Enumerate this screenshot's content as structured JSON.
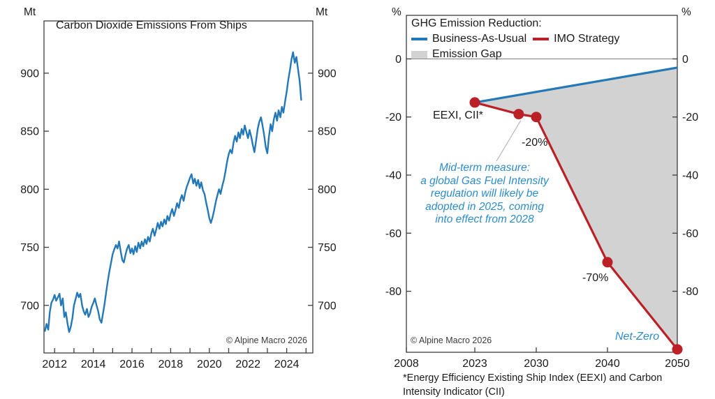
{
  "colors": {
    "line_blue": "#2379b7",
    "line_red": "#bb2027",
    "gap_gray": "#d2d2d2",
    "annotation_blue": "#2e8bc9",
    "axis_line": "#3d3d3d",
    "zero_line": "#8a8a8a",
    "callout": "#b5b5b5",
    "text": "#1a1a1a",
    "source_text": "#3a3a3a"
  },
  "chart_data": [
    {
      "type": "line",
      "title": "Carbon Dioxide Emissions From Ships",
      "unit_left": "Mt",
      "unit_right": "Mt",
      "source": "© Alpine Macro 2026",
      "xlim": [
        2011.45,
        2025.35
      ],
      "ylim": [
        659,
        945
      ],
      "y_ticks": [
        700,
        750,
        800,
        850,
        900
      ],
      "x_tick_years": [
        2012,
        2013,
        2014,
        2015,
        2016,
        2017,
        2018,
        2019,
        2020,
        2021,
        2022,
        2023,
        2024,
        2025
      ],
      "x_tick_labels": [
        2012,
        2014,
        2016,
        2018,
        2020,
        2022,
        2024
      ],
      "grid": false,
      "series": [
        {
          "name": "CO2 emissions from ships (Mt)",
          "color_key": "line_blue",
          "points": [
            [
              2011.5,
              678
            ],
            [
              2011.58,
              684
            ],
            [
              2011.67,
              679
            ],
            [
              2011.75,
              694
            ],
            [
              2011.83,
              702
            ],
            [
              2011.92,
              705
            ],
            [
              2012,
              709
            ],
            [
              2012.08,
              704
            ],
            [
              2012.17,
              707
            ],
            [
              2012.25,
              710
            ],
            [
              2012.33,
              700
            ],
            [
              2012.42,
              706
            ],
            [
              2012.5,
              690
            ],
            [
              2012.58,
              694
            ],
            [
              2012.67,
              684
            ],
            [
              2012.75,
              677
            ],
            [
              2012.83,
              681
            ],
            [
              2012.92,
              689
            ],
            [
              2013,
              700
            ],
            [
              2013.08,
              705
            ],
            [
              2013.17,
              711
            ],
            [
              2013.25,
              707
            ],
            [
              2013.33,
              710
            ],
            [
              2013.42,
              700
            ],
            [
              2013.5,
              695
            ],
            [
              2013.58,
              692
            ],
            [
              2013.67,
              697
            ],
            [
              2013.75,
              690
            ],
            [
              2013.83,
              693
            ],
            [
              2013.92,
              699
            ],
            [
              2014,
              702
            ],
            [
              2014.08,
              706
            ],
            [
              2014.17,
              700
            ],
            [
              2014.25,
              695
            ],
            [
              2014.33,
              688
            ],
            [
              2014.42,
              685
            ],
            [
              2014.5,
              693
            ],
            [
              2014.58,
              701
            ],
            [
              2014.67,
              712
            ],
            [
              2014.75,
              721
            ],
            [
              2014.83,
              729
            ],
            [
              2014.92,
              737
            ],
            [
              2015,
              744
            ],
            [
              2015.08,
              748
            ],
            [
              2015.17,
              752
            ],
            [
              2015.25,
              749
            ],
            [
              2015.33,
              755
            ],
            [
              2015.42,
              746
            ],
            [
              2015.5,
              739
            ],
            [
              2015.58,
              737
            ],
            [
              2015.67,
              744
            ],
            [
              2015.75,
              749
            ],
            [
              2015.83,
              752
            ],
            [
              2015.92,
              745
            ],
            [
              2016,
              749
            ],
            [
              2016.08,
              744
            ],
            [
              2016.17,
              751
            ],
            [
              2016.25,
              746
            ],
            [
              2016.33,
              754
            ],
            [
              2016.42,
              749
            ],
            [
              2016.5,
              755
            ],
            [
              2016.58,
              751
            ],
            [
              2016.67,
              757
            ],
            [
              2016.75,
              753
            ],
            [
              2016.83,
              759
            ],
            [
              2016.92,
              755
            ],
            [
              2017,
              762
            ],
            [
              2017.08,
              766
            ],
            [
              2017.17,
              760
            ],
            [
              2017.25,
              765
            ],
            [
              2017.33,
              771
            ],
            [
              2017.42,
              766
            ],
            [
              2017.5,
              772
            ],
            [
              2017.58,
              768
            ],
            [
              2017.67,
              774
            ],
            [
              2017.75,
              770
            ],
            [
              2017.83,
              777
            ],
            [
              2017.92,
              773
            ],
            [
              2018,
              779
            ],
            [
              2018.08,
              783
            ],
            [
              2018.17,
              777
            ],
            [
              2018.25,
              782
            ],
            [
              2018.33,
              788
            ],
            [
              2018.42,
              784
            ],
            [
              2018.5,
              791
            ],
            [
              2018.58,
              795
            ],
            [
              2018.67,
              790
            ],
            [
              2018.75,
              797
            ],
            [
              2018.83,
              802
            ],
            [
              2018.92,
              806
            ],
            [
              2019,
              810
            ],
            [
              2019.08,
              813
            ],
            [
              2019.17,
              805
            ],
            [
              2019.25,
              809
            ],
            [
              2019.33,
              803
            ],
            [
              2019.42,
              808
            ],
            [
              2019.5,
              801
            ],
            [
              2019.58,
              806
            ],
            [
              2019.67,
              799
            ],
            [
              2019.75,
              796
            ],
            [
              2019.83,
              789
            ],
            [
              2019.92,
              782
            ],
            [
              2020,
              775
            ],
            [
              2020.08,
              771
            ],
            [
              2020.17,
              776
            ],
            [
              2020.25,
              782
            ],
            [
              2020.33,
              789
            ],
            [
              2020.42,
              795
            ],
            [
              2020.5,
              800
            ],
            [
              2020.58,
              796
            ],
            [
              2020.67,
              803
            ],
            [
              2020.75,
              808
            ],
            [
              2020.83,
              815
            ],
            [
              2020.92,
              824
            ],
            [
              2021,
              830
            ],
            [
              2021.08,
              834
            ],
            [
              2021.17,
              831
            ],
            [
              2021.25,
              840
            ],
            [
              2021.33,
              846
            ],
            [
              2021.42,
              841
            ],
            [
              2021.5,
              849
            ],
            [
              2021.58,
              844
            ],
            [
              2021.67,
              852
            ],
            [
              2021.75,
              847
            ],
            [
              2021.83,
              855
            ],
            [
              2021.92,
              849
            ],
            [
              2022,
              844
            ],
            [
              2022.08,
              851
            ],
            [
              2022.17,
              845
            ],
            [
              2022.25,
              838
            ],
            [
              2022.33,
              832
            ],
            [
              2022.42,
              842
            ],
            [
              2022.5,
              852
            ],
            [
              2022.58,
              858
            ],
            [
              2022.67,
              862
            ],
            [
              2022.75,
              855
            ],
            [
              2022.83,
              847
            ],
            [
              2022.92,
              836
            ],
            [
              2023,
              831
            ],
            [
              2023.08,
              845
            ],
            [
              2023.17,
              856
            ],
            [
              2023.25,
              850
            ],
            [
              2023.33,
              860
            ],
            [
              2023.42,
              866
            ],
            [
              2023.5,
              859
            ],
            [
              2023.58,
              868
            ],
            [
              2023.67,
              862
            ],
            [
              2023.75,
              871
            ],
            [
              2023.83,
              866
            ],
            [
              2023.92,
              876
            ],
            [
              2024,
              884
            ],
            [
              2024.08,
              894
            ],
            [
              2024.17,
              903
            ],
            [
              2024.25,
              912
            ],
            [
              2024.33,
              918
            ],
            [
              2024.42,
              909
            ],
            [
              2024.5,
              914
            ],
            [
              2024.58,
              904
            ],
            [
              2024.67,
              893
            ],
            [
              2024.75,
              877
            ]
          ]
        }
      ]
    },
    {
      "type": "line",
      "title": "GHG Emission Reduction:",
      "unit_left": "%",
      "unit_right": "%",
      "source": "© Alpine Macro 2026",
      "ylim": [
        -101,
        15
      ],
      "y_ticks": [
        0,
        -20,
        -40,
        -60,
        -80
      ],
      "x_ticks": [
        2008,
        2023,
        2030,
        2040,
        2050
      ],
      "zero_gridline": true,
      "legend": {
        "title": "GHG Emission Reduction:",
        "items": [
          {
            "label": "Business-As-Usual",
            "swatch": "line",
            "color_key": "line_blue"
          },
          {
            "label": "IMO Strategy",
            "swatch": "line",
            "color_key": "line_red"
          },
          {
            "label": "Emission Gap",
            "swatch": "box",
            "color_key": "gap_gray"
          }
        ]
      },
      "series": [
        {
          "name": "Business-As-Usual",
          "color_key": "line_blue",
          "markers": false,
          "points": [
            [
              2023,
              -15
            ],
            [
              2050,
              -3
            ]
          ]
        },
        {
          "name": "IMO Strategy",
          "color_key": "line_red",
          "markers": true,
          "points": [
            [
              2023,
              -15
            ],
            [
              2028,
              -19
            ],
            [
              2030,
              -20
            ],
            [
              2040,
              -70
            ],
            [
              2050,
              -100
            ]
          ]
        }
      ],
      "gap_area": {
        "name": "Emission Gap",
        "between": [
          "Business-As-Usual",
          "IMO Strategy"
        ],
        "color_key": "gap_gray"
      },
      "annotations": {
        "eexi": {
          "text": "EEXI, CII*"
        },
        "target_2030": {
          "text": "-20%"
        },
        "target_2040": {
          "text": "-70%"
        },
        "net_zero": {
          "text": "Net-Zero"
        },
        "mid_term_note": {
          "lines": [
            "Mid-term measure:",
            "a global Gas Fuel Intensity",
            "regulation will likely be",
            "adopted in 2025, coming",
            "into effect from 2028"
          ]
        }
      }
    }
  ],
  "footnote": {
    "lines": [
      "*Energy Efficiency Existing Ship Index (EEXI) and Carbon",
      "Intensity Indicator (CII)"
    ]
  }
}
